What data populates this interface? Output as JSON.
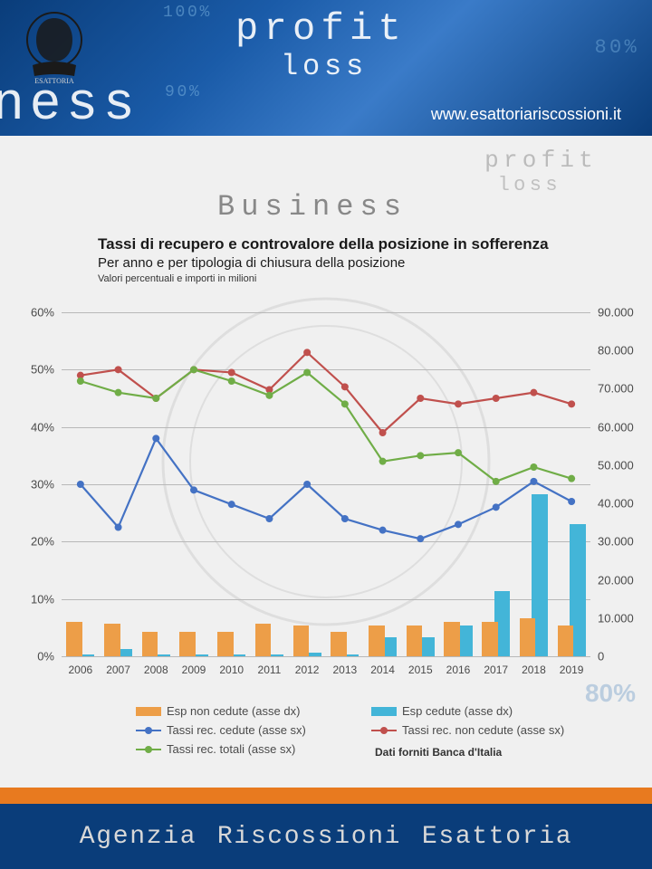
{
  "header": {
    "profit": "profit",
    "loss": "loss",
    "ness": "ness",
    "pct100": "100%",
    "pct90": "90%",
    "pct80": "80%",
    "url": "www.esattoriariscossioni.it"
  },
  "watermark": {
    "business": "Business",
    "profit": "profit",
    "loss": "loss",
    "pct80": "80%"
  },
  "chart": {
    "title": "Tassi di recupero e controvalore della posizione in sofferenza",
    "subtitle": "Per anno e per tipologia di chiusura della posizione",
    "note": "Valori percentuali e importi in milioni",
    "type": "combo-bar-line",
    "categories": [
      "2006",
      "2007",
      "2008",
      "2009",
      "2010",
      "2011",
      "2012",
      "2013",
      "2014",
      "2015",
      "2016",
      "2017",
      "2018",
      "2019"
    ],
    "y_left": {
      "min": 0,
      "max": 60,
      "step": 10,
      "unit": "%"
    },
    "y_right": {
      "min": 0,
      "max": 90000,
      "step": 10000,
      "format": "thousands-dot"
    },
    "bars": {
      "esp_non_cedute": {
        "label": "Esp non cedute (asse dx)",
        "color": "#ed9e48",
        "axis": "right",
        "values": [
          9000,
          8500,
          6500,
          6500,
          6500,
          8500,
          8000,
          6500,
          8000,
          8000,
          9000,
          9000,
          10000,
          8000
        ]
      },
      "esp_cedute": {
        "label": "Esp cedute (asse dx)",
        "color": "#43b5d8",
        "axis": "right",
        "values": [
          500,
          2000,
          500,
          500,
          500,
          500,
          1000,
          500,
          5000,
          5000,
          8000,
          17000,
          42500,
          34500
        ]
      }
    },
    "lines": {
      "tassi_cedute": {
        "label": "Tassi rec. cedute (asse sx)",
        "color": "#4472c4",
        "axis": "left",
        "values": [
          30,
          22.5,
          38,
          29,
          26.5,
          24,
          30,
          24,
          22,
          20.5,
          23,
          26,
          30.5,
          27
        ]
      },
      "tassi_non_cedute": {
        "label": "Tassi rec. non cedute (asse sx)",
        "color": "#c0504d",
        "axis": "left",
        "values": [
          49,
          50,
          45,
          50,
          49.5,
          46.5,
          53,
          47,
          39,
          45,
          44,
          45,
          46,
          44
        ]
      },
      "tassi_totali": {
        "label": "Tassi rec. totali (asse sx)",
        "color": "#70ad47",
        "axis": "left",
        "values": [
          48,
          46,
          45,
          50,
          48,
          45.5,
          49.5,
          44,
          34,
          35,
          35.5,
          30.5,
          33,
          31
        ]
      }
    },
    "marker_radius": 4,
    "line_width": 2.2,
    "grid_color": "#b8b8b8",
    "text_color": "#4a4a4a",
    "data_source": "Dati forniti Banca d'Italia"
  },
  "footer": {
    "text": "Agenzia Riscossioni Esattoria"
  }
}
